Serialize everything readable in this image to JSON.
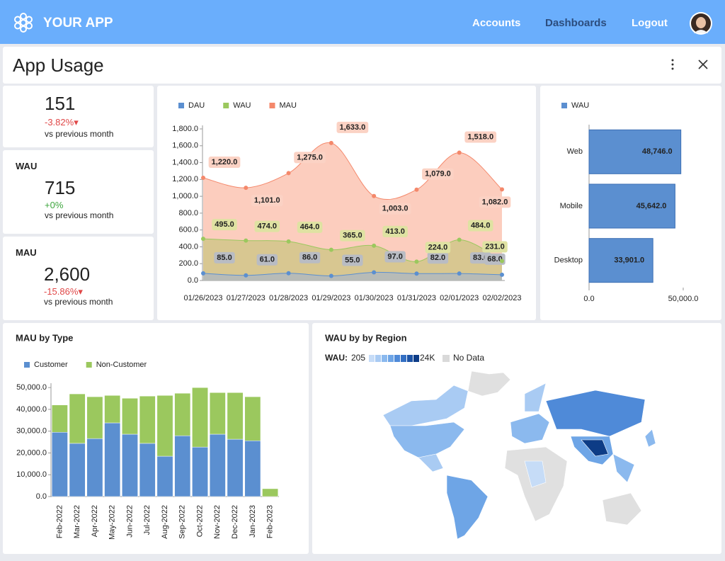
{
  "header": {
    "app_name": "YOUR APP",
    "nav": [
      "Accounts",
      "Dashboards",
      "Logout"
    ]
  },
  "page": {
    "title": "App Usage"
  },
  "kpis": [
    {
      "value": "151",
      "change": "-3.82%",
      "note": "vs previous month"
    },
    {
      "label": "WAU",
      "value": "715",
      "change": "+0%",
      "note": "vs previous month"
    },
    {
      "label": "MAU",
      "value": "2,600",
      "change": "-15.86%",
      "note": "vs previous month"
    }
  ],
  "daily_chart": {
    "type": "area",
    "legend": "top",
    "x": [
      "01/26/2023",
      "01/27/2023",
      "01/28/2023",
      "01/29/2023",
      "01/30/2023",
      "01/31/2023",
      "02/01/2023",
      "02/02/2023"
    ],
    "series": [
      {
        "name": "DAU",
        "color": "#5b8fd0",
        "values": [
          85,
          61,
          86,
          55,
          97,
          82,
          83,
          68
        ],
        "value_labels": [
          "85.0",
          "61.0",
          "86.0",
          "55.0",
          "97.0",
          "82.0",
          "83.0",
          "68.0"
        ]
      },
      {
        "name": "WAU",
        "color": "#9bc85e",
        "values": [
          495,
          474,
          464,
          365,
          413,
          224,
          484,
          231
        ],
        "value_labels": [
          "495.0",
          "474.0",
          "464.0",
          "365.0",
          "413.0",
          "224.0",
          "484.0",
          "231.0"
        ]
      },
      {
        "name": "MAU",
        "color": "#f4886b",
        "values": [
          1220,
          1101,
          1275,
          1633,
          1003,
          1079,
          1518,
          1082
        ],
        "value_labels": [
          "1,220.0",
          "1,101.0",
          "1,275.0",
          "1,633.0",
          "1,003.0",
          "1,079.0",
          "1,518.0",
          "1,082.0"
        ]
      }
    ],
    "ylim": [
      0,
      1800
    ],
    "yticks": [
      {
        "value": 0,
        "label": "0.0"
      },
      {
        "value": 200,
        "label": "200.0"
      },
      {
        "value": 400,
        "label": "400.0"
      },
      {
        "value": 600,
        "label": "600.0"
      },
      {
        "value": 800,
        "label": "800.0"
      },
      {
        "value": 1000,
        "label": "1,000.0"
      },
      {
        "value": 1200,
        "label": "1,200.0"
      },
      {
        "value": 1400,
        "label": "1,400.0"
      },
      {
        "value": 1600,
        "label": "1,600.0"
      },
      {
        "value": 1800,
        "label": "1,800.0"
      }
    ]
  },
  "platform_chart": {
    "type": "bar",
    "orientation": "horizontal",
    "legend": "top",
    "categories": [
      "Web",
      "Mobile",
      "Desktop"
    ],
    "series": [
      {
        "name": "WAU",
        "color": "#5b8fd0",
        "values": [
          48746,
          45642,
          33901
        ],
        "value_labels": [
          "48,746.0",
          "45,642.0",
          "33,901.0"
        ]
      }
    ],
    "xlim": [
      0,
      50000
    ],
    "xticks": [
      {
        "value": 0,
        "label": "0.0"
      },
      {
        "value": 50000,
        "label": "50,000.0"
      }
    ]
  },
  "type_chart": {
    "type": "stacked_bar",
    "title": "MAU by Type",
    "legend": "top",
    "categories": [
      "Feb-2022",
      "Mar-2022",
      "Apr-2022",
      "May-2022",
      "Jun-2022",
      "Jul-2022",
      "Aug-2022",
      "Sep-2022",
      "Oct-2022",
      "Nov-2022",
      "Dec-2022",
      "Jan-2023",
      "Feb-2023"
    ],
    "series": [
      {
        "name": "Customer",
        "color": "#5b8fd0",
        "values": [
          29500,
          24400,
          26600,
          33800,
          28600,
          24400,
          18500,
          27900,
          22700,
          28600,
          26300,
          25600,
          0
        ]
      },
      {
        "name": "Non-Customer",
        "color": "#9bc85e",
        "values": [
          12500,
          22700,
          19200,
          12600,
          16500,
          21700,
          27900,
          19500,
          27300,
          19100,
          21400,
          20200,
          3600
        ]
      }
    ],
    "ylim": [
      0,
      52000
    ],
    "yticks": [
      {
        "value": 0,
        "label": "0.0"
      },
      {
        "value": 10000,
        "label": "10,000.0"
      },
      {
        "value": 20000,
        "label": "20,000.0"
      },
      {
        "value": 30000,
        "label": "30,000.0"
      },
      {
        "value": 40000,
        "label": "40,000.0"
      },
      {
        "value": 50000,
        "label": "50,000.0"
      }
    ]
  },
  "region_map": {
    "title": "WAU by by Region",
    "legend_label": "WAU:",
    "min_label": "205",
    "max_label": "24K",
    "no_data_label": "No Data"
  }
}
